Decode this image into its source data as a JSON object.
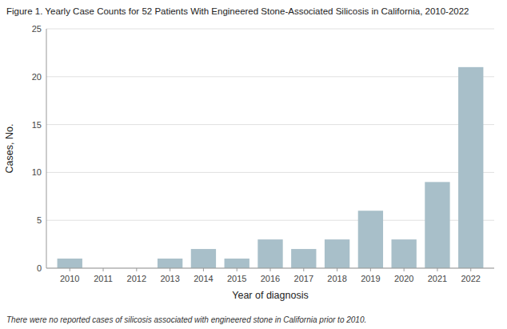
{
  "chart_data": {
    "type": "bar",
    "title": "Figure 1.  Yearly Case Counts for 52 Patients With Engineered Stone-Associated Silicosis in California, 2010-2022",
    "xlabel": "Year of diagnosis",
    "ylabel": "Cases, No.",
    "x": [
      2010,
      2011,
      2012,
      2013,
      2014,
      2015,
      2016,
      2017,
      2018,
      2019,
      2020,
      2021,
      2022
    ],
    "values": [
      1,
      0,
      0,
      1,
      2,
      1,
      3,
      2,
      3,
      6,
      3,
      9,
      21
    ],
    "color": "#a8bfc9",
    "xlim": [
      2009.3,
      2022.7
    ],
    "xticks": [
      2010,
      2011,
      2012,
      2013,
      2014,
      2015,
      2016,
      2017,
      2018,
      2019,
      2020,
      2021,
      2022
    ],
    "ylim": [
      0,
      25
    ],
    "yticks": [
      0,
      5,
      10,
      15,
      20,
      25
    ],
    "grid": true,
    "footnote": "There were no reported cases of silicosis associated with engineered stone in California prior to 2010."
  }
}
